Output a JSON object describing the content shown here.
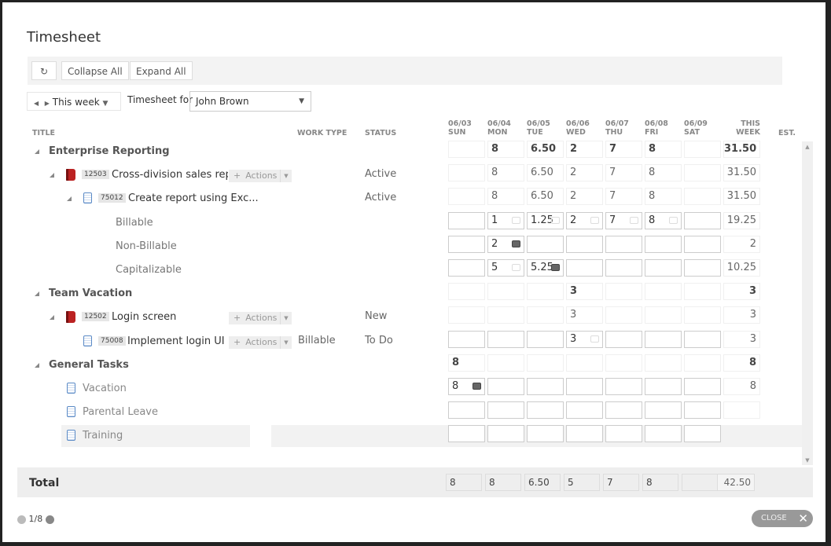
{
  "title": "Timesheet",
  "toolbar": {
    "refresh_icon": "refresh-icon",
    "collapse": "Collapse All",
    "expand": "Expand All"
  },
  "week": {
    "label": "This week",
    "timesheet_for": "Timesheet for",
    "user": "John Brown"
  },
  "headers": {
    "title": "TITLE",
    "work_type": "WORK TYPE",
    "status": "STATUS",
    "days": [
      [
        "06/03",
        "SUN"
      ],
      [
        "06/04",
        "MON"
      ],
      [
        "06/05",
        "TUE"
      ],
      [
        "06/06",
        "WED"
      ],
      [
        "06/07",
        "THU"
      ],
      [
        "06/08",
        "FRI"
      ],
      [
        "06/09",
        "SAT"
      ]
    ],
    "this_week": [
      "THIS",
      "WEEK"
    ],
    "est": "EST."
  },
  "rows": [
    {
      "type": "group",
      "title": "Enterprise Reporting",
      "cells": [
        "",
        "8",
        "6.50",
        "2",
        "7",
        "8",
        ""
      ],
      "total": "31.50",
      "style": "ro bold"
    },
    {
      "type": "item",
      "id": "12503",
      "title": "Cross-division sales rep…",
      "actions": "Actions",
      "status": "Active",
      "cells": [
        "",
        "8",
        "6.50",
        "2",
        "7",
        "8",
        ""
      ],
      "total": "31.50",
      "style": "ro"
    },
    {
      "type": "task",
      "id": "75012",
      "title": "Create report using Exc...",
      "status": "Active",
      "cells": [
        "",
        "8",
        "6.50",
        "2",
        "7",
        "8",
        ""
      ],
      "total": "31.50",
      "style": "ro"
    },
    {
      "type": "sub",
      "title": "Billable",
      "cells": [
        "",
        "1",
        "1.25",
        "2",
        "7",
        "8",
        ""
      ],
      "comments": [
        "",
        "light",
        "light",
        "light",
        "light",
        "light",
        ""
      ],
      "total": "19.25",
      "style": "in"
    },
    {
      "type": "sub",
      "title": "Non-Billable",
      "cells": [
        "",
        "2",
        "",
        "",
        "",
        "",
        ""
      ],
      "comments": [
        "",
        "dark",
        "",
        "",
        "",
        "",
        ""
      ],
      "total": "2",
      "style": "in"
    },
    {
      "type": "sub",
      "title": "Capitalizable",
      "cells": [
        "",
        "5",
        "5.25",
        "",
        "",
        "",
        ""
      ],
      "comments": [
        "",
        "light",
        "dark",
        "",
        "",
        "",
        ""
      ],
      "total": "10.25",
      "style": "in"
    },
    {
      "type": "group",
      "title": "Team Vacation",
      "cells": [
        "",
        "",
        "",
        "3",
        "",
        "",
        ""
      ],
      "total": "3",
      "style": "ro bold"
    },
    {
      "type": "item",
      "id": "12502",
      "title": "Login screen",
      "actions": "Actions",
      "status": "New",
      "cells": [
        "",
        "",
        "",
        "3",
        "",
        "",
        ""
      ],
      "total": "3",
      "style": "ro"
    },
    {
      "type": "task2",
      "id": "75008",
      "title": "Implement login UI",
      "actions": "Actions",
      "work_type": "Billable",
      "status": "To Do",
      "cells": [
        "",
        "",
        "",
        "3",
        "",
        "",
        ""
      ],
      "comments": [
        "",
        "",
        "",
        "light",
        "",
        "",
        ""
      ],
      "total": "3",
      "style": "in"
    },
    {
      "type": "group",
      "title": "General Tasks",
      "cells": [
        "8",
        "",
        "",
        "",
        "",
        "",
        ""
      ],
      "total": "8",
      "style": "ro bold"
    },
    {
      "type": "gen",
      "title": "Vacation",
      "cells": [
        "8",
        "",
        "",
        "",
        "",
        "",
        ""
      ],
      "comments": [
        "dark",
        "",
        "",
        "",
        "",
        "",
        ""
      ],
      "total": "8",
      "style": "in"
    },
    {
      "type": "gen",
      "title": "Parental Leave",
      "cells": [
        "",
        "",
        "",
        "",
        "",
        "",
        ""
      ],
      "total": "",
      "style": "in"
    },
    {
      "type": "gen",
      "title": "Training",
      "cells": [
        "",
        "",
        "",
        "",
        "",
        "",
        ""
      ],
      "style": "in",
      "selected": true
    }
  ],
  "footer": {
    "label": "Total",
    "cells": [
      "8",
      "8",
      "6.50",
      "5",
      "7",
      "8",
      ""
    ],
    "total": "42.50"
  },
  "pager": {
    "text": "1/8"
  },
  "close": "CLOSE"
}
